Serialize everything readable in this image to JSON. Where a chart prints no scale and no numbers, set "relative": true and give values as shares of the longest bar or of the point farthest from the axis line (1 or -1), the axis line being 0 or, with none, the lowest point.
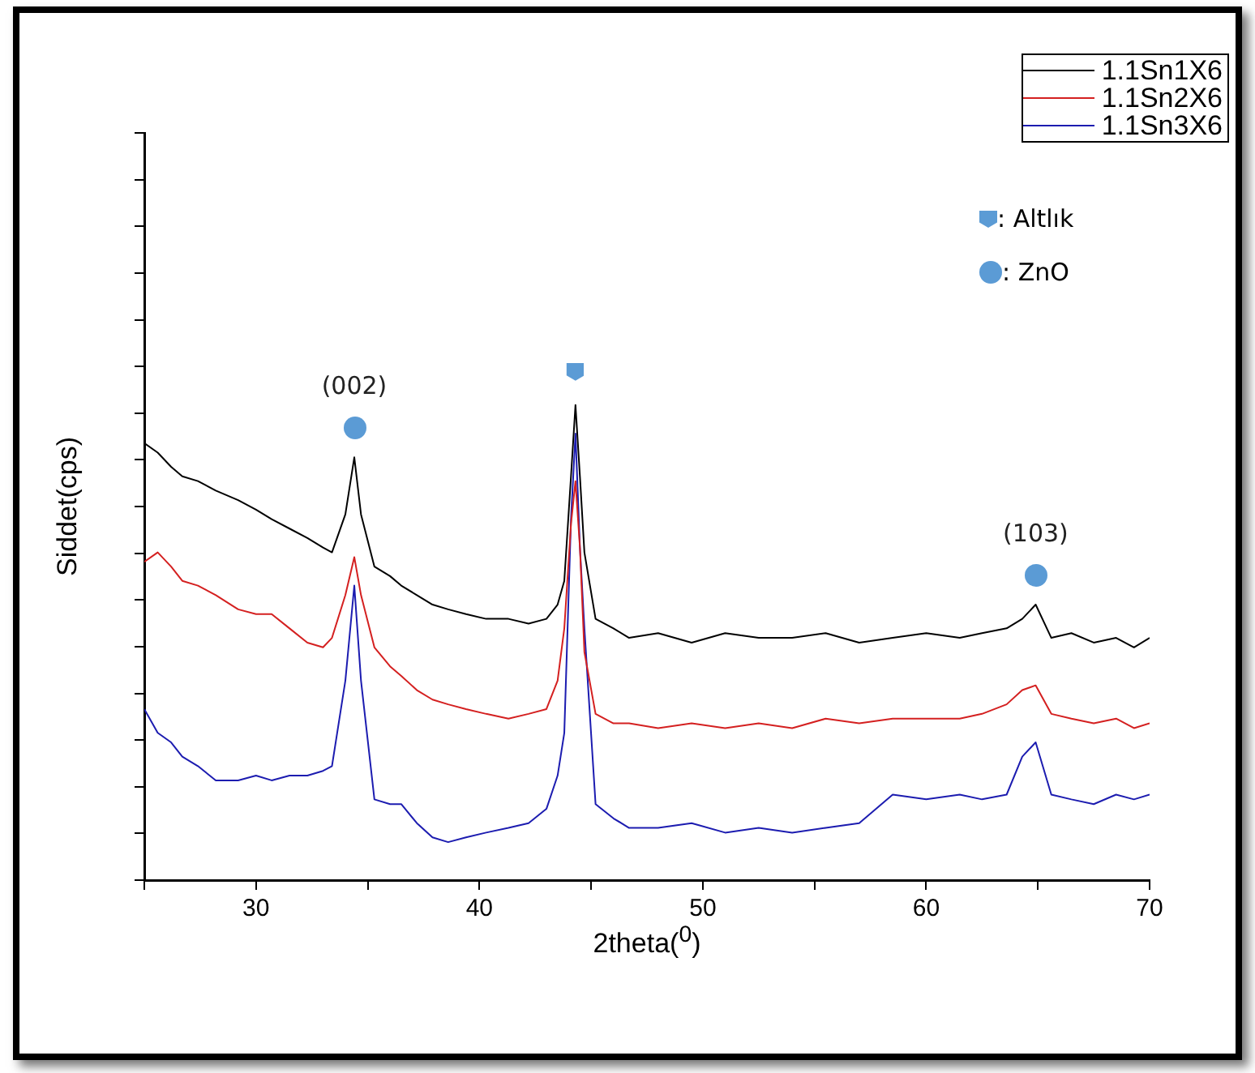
{
  "chart_data": {
    "type": "line",
    "xlabel": "2theta($^{0}$)",
    "ylabel": "Siddet(cps)",
    "relative": true,
    "legend": "top right",
    "x": [
      25,
      25.6,
      26.2,
      26.7,
      27.4,
      28.2,
      29.2,
      30,
      30.7,
      31.5,
      32.3,
      33,
      33.4,
      34,
      34.4,
      34.7,
      35.3,
      36,
      36.5,
      37.2,
      37.9,
      38.6,
      39.4,
      40.3,
      41.3,
      42.2,
      43,
      43.5,
      43.8,
      44.1,
      44.3,
      44.5,
      44.7,
      45.2,
      46,
      46.7,
      48,
      49.5,
      51,
      52.5,
      54,
      55.5,
      57,
      58.5,
      60,
      61.5,
      62.5,
      63.6,
      64.3,
      64.9,
      65.6,
      66.5,
      67.5,
      68.5,
      69.3,
      70
    ],
    "xlim": [
      25,
      70
    ],
    "xticks": [
      {
        "value": 25,
        "label": null
      },
      30,
      {
        "value": 35,
        "label": null
      },
      40,
      {
        "value": 45,
        "label": null
      },
      50,
      {
        "value": 55,
        "label": null
      },
      60,
      {
        "value": 65,
        "label": null
      },
      70
    ],
    "series": [
      {
        "name": "1.1Sn1X6",
        "color": "#000000",
        "values": [
          0.92,
          0.9,
          0.87,
          0.85,
          0.84,
          0.82,
          0.8,
          0.78,
          0.76,
          0.74,
          0.72,
          0.7,
          0.69,
          0.77,
          0.89,
          0.77,
          0.66,
          0.64,
          0.62,
          0.6,
          0.58,
          0.57,
          0.56,
          0.55,
          0.55,
          0.54,
          0.55,
          0.58,
          0.63,
          0.85,
          1,
          0.85,
          0.69,
          0.55,
          0.53,
          0.51,
          0.52,
          0.5,
          0.52,
          0.51,
          0.51,
          0.52,
          0.5,
          0.51,
          0.52,
          0.51,
          0.52,
          0.53,
          0.55,
          0.58,
          0.51,
          0.52,
          0.5,
          0.51,
          0.49,
          0.51
        ]
      },
      {
        "name": "1.1Sn2X6",
        "color": "#d42020",
        "values": [
          0.67,
          0.69,
          0.66,
          0.63,
          0.62,
          0.6,
          0.57,
          0.56,
          0.56,
          0.53,
          0.5,
          0.49,
          0.51,
          0.6,
          0.68,
          0.6,
          0.49,
          0.45,
          0.43,
          0.4,
          0.38,
          0.37,
          0.36,
          0.35,
          0.34,
          0.35,
          0.36,
          0.42,
          0.53,
          0.75,
          0.84,
          0.7,
          0.48,
          0.35,
          0.33,
          0.33,
          0.32,
          0.33,
          0.32,
          0.33,
          0.32,
          0.34,
          0.33,
          0.34,
          0.34,
          0.34,
          0.35,
          0.37,
          0.4,
          0.41,
          0.35,
          0.34,
          0.33,
          0.34,
          0.32,
          0.33
        ]
      },
      {
        "name": "1.1Sn3X6",
        "color": "#1c1cb0",
        "values": [
          0.36,
          0.31,
          0.29,
          0.26,
          0.24,
          0.21,
          0.21,
          0.22,
          0.21,
          0.22,
          0.22,
          0.23,
          0.24,
          0.42,
          0.62,
          0.42,
          0.17,
          0.16,
          0.16,
          0.12,
          0.09,
          0.08,
          0.09,
          0.1,
          0.11,
          0.12,
          0.15,
          0.22,
          0.31,
          0.76,
          0.94,
          0.7,
          0.53,
          0.16,
          0.13,
          0.11,
          0.11,
          0.12,
          0.1,
          0.11,
          0.1,
          0.11,
          0.12,
          0.18,
          0.17,
          0.18,
          0.17,
          0.18,
          0.26,
          0.29,
          0.18,
          0.17,
          0.16,
          0.18,
          0.17,
          0.18
        ]
      }
    ],
    "annotations": [
      {
        "text": "(002)",
        "x": 34.4,
        "y": 0.89
      },
      {
        "text": "(103)",
        "x": 64.9,
        "y": 0.58
      },
      ": Altlık",
      ": ZnO"
    ]
  }
}
